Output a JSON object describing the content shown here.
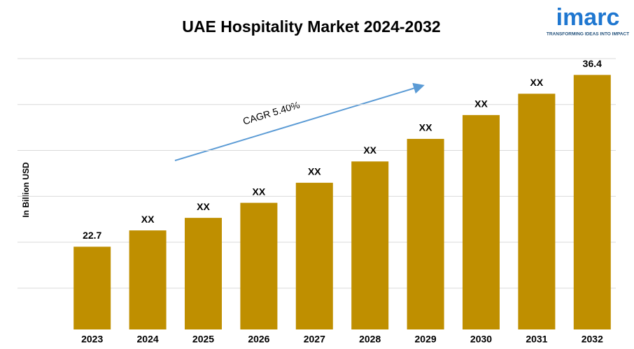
{
  "chart_data": {
    "type": "bar",
    "title": "UAE Hospitality Market 2024-2032",
    "y_axis_label": "In Billion USD",
    "annotation": "CAGR 5.40%",
    "logo": {
      "name": "imarc",
      "tagline": "TRANSFORMING IDEAS INTO IMPACT"
    },
    "categories": [
      "2023",
      "2024",
      "2025",
      "2026",
      "2027",
      "2028",
      "2029",
      "2030",
      "2031",
      "2032"
    ],
    "values": [
      22.7,
      24.0,
      25.0,
      26.2,
      27.8,
      29.5,
      31.3,
      33.2,
      34.9,
      36.4
    ],
    "value_labels": [
      "22.7",
      "XX",
      "XX",
      "XX",
      "XX",
      "XX",
      "XX",
      "XX",
      "XX",
      "36.4"
    ],
    "color": "#bf8f00",
    "ylim": [
      16.1,
      37.7
    ],
    "grid": true
  }
}
